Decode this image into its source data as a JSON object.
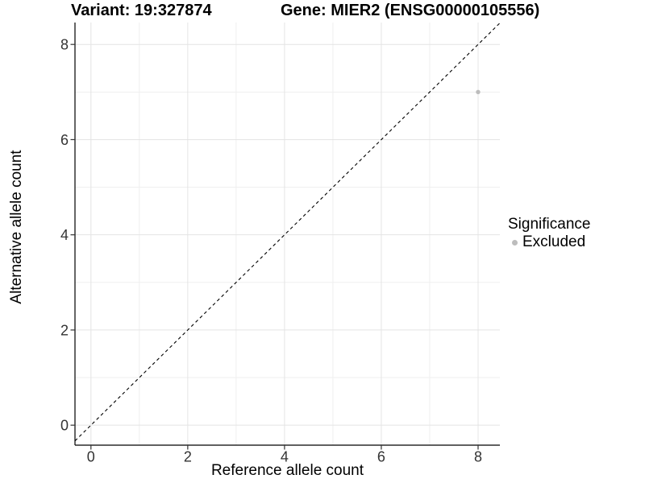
{
  "header": {
    "variant_title": "Variant: 19:327874",
    "gene_title": "Gene: MIER2 (ENSG00000105556)"
  },
  "chart_data": {
    "type": "scatter",
    "title_left": "Variant: 19:327874",
    "title_right": "Gene: MIER2 (ENSG00000105556)",
    "xlabel": "Reference allele count",
    "ylabel": "Alternative allele count",
    "xlim": [
      -0.33,
      8.45
    ],
    "ylim": [
      -0.42,
      8.46
    ],
    "x_major_ticks": [
      0,
      2,
      4,
      6,
      8
    ],
    "y_major_ticks": [
      0,
      2,
      4,
      6,
      8
    ],
    "x_minor_gridlines": [
      1,
      3,
      5,
      7
    ],
    "y_minor_gridlines": [
      1,
      3,
      5,
      7
    ],
    "grid": true,
    "identity_line": {
      "x1": -0.33,
      "y1": -0.33,
      "x2": 8.45,
      "y2": 8.45,
      "style": "dashed",
      "color": "#000000"
    },
    "series": [
      {
        "name": "Excluded",
        "color": "#bdbdbd",
        "point_radius": 2.7,
        "points": [
          {
            "x": 8,
            "y": 7
          }
        ]
      }
    ],
    "legend": {
      "title": "Significance",
      "position": "right",
      "items": [
        {
          "label": "Excluded",
          "color": "#bdbdbd"
        }
      ]
    },
    "colors": {
      "background": "#ffffff",
      "axis_line": "#000000",
      "tick_mark": "#333333",
      "tick_label": "#333333",
      "grid_major": "#e4e4e4",
      "grid_minor": "#efefef"
    }
  }
}
